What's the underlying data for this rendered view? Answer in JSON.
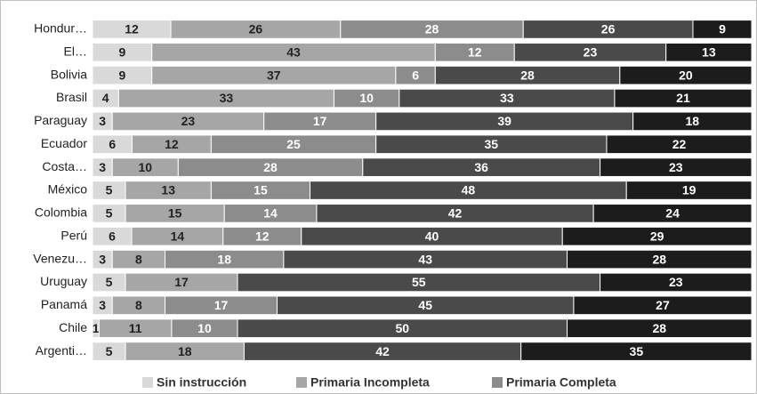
{
  "chart_data": {
    "type": "stacked_bar_100_horizontal",
    "categories": [
      "Hondur…",
      "El…",
      "Bolivia",
      "Brasil",
      "Paraguay",
      "Ecuador",
      "Costa…",
      "México",
      "Colombia",
      "Perú",
      "Venezu…",
      "Uruguay",
      "Panamá",
      "Chile",
      "Argenti…"
    ],
    "series": [
      {
        "name": "Sin instrucción",
        "color": "#d9d9d9",
        "values": [
          12,
          9,
          9,
          4,
          3,
          6,
          3,
          5,
          5,
          6,
          3,
          5,
          3,
          1,
          5
        ]
      },
      {
        "name": "Primaria Incompleta",
        "color": "#a6a6a6",
        "values": [
          26,
          43,
          37,
          33,
          23,
          12,
          10,
          13,
          15,
          14,
          8,
          17,
          8,
          11,
          18
        ]
      },
      {
        "name": "Primaria Completa",
        "color": "#8c8c8c",
        "values": [
          28,
          12,
          6,
          10,
          17,
          25,
          28,
          15,
          14,
          12,
          18,
          null,
          17,
          10,
          null
        ]
      },
      {
        "color": "#4a4a4a",
        "values": [
          26,
          23,
          28,
          33,
          39,
          35,
          36,
          48,
          42,
          40,
          43,
          55,
          45,
          50,
          42
        ]
      },
      {
        "color": "#1c1c1c",
        "values": [
          9,
          13,
          20,
          21,
          18,
          22,
          23,
          19,
          24,
          29,
          28,
          23,
          27,
          28,
          35
        ]
      }
    ]
  }
}
